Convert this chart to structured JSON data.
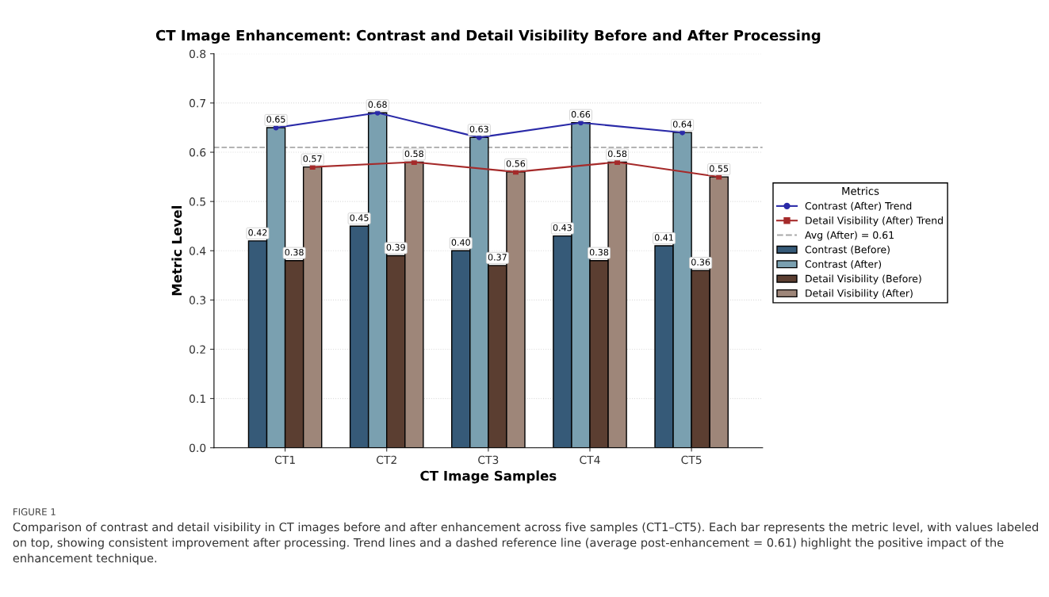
{
  "chart_data": {
    "type": "bar",
    "title": "CT Image Enhancement: Contrast and Detail Visibility Before and After Processing",
    "xlabel": "CT Image Samples",
    "ylabel": "Metric Level",
    "legend_title": "Metrics",
    "categories": [
      "CT1",
      "CT2",
      "CT3",
      "CT4",
      "CT5"
    ],
    "series": [
      {
        "name": "Contrast (Before)",
        "color": "#365a78",
        "values": [
          0.42,
          0.45,
          0.4,
          0.43,
          0.41
        ],
        "value_labels": [
          "0.42",
          "0.45",
          "0.40",
          "0.43",
          "0.41"
        ]
      },
      {
        "name": "Contrast (After)",
        "color": "#7aa0b0",
        "values": [
          0.65,
          0.68,
          0.63,
          0.66,
          0.64
        ],
        "value_labels": [
          "0.65",
          "0.68",
          "0.63",
          "0.66",
          "0.64"
        ]
      },
      {
        "name": "Detail Visibility (Before)",
        "color": "#5b3e31",
        "values": [
          0.38,
          0.39,
          0.37,
          0.38,
          0.36
        ],
        "value_labels": [
          "0.38",
          "0.39",
          "0.37",
          "0.38",
          "0.36"
        ]
      },
      {
        "name": "Detail Visibility (After)",
        "color": "#9e8679",
        "values": [
          0.57,
          0.58,
          0.56,
          0.58,
          0.55
        ],
        "value_labels": [
          "0.57",
          "0.58",
          "0.56",
          "0.58",
          "0.55"
        ]
      },
      {
        "name": "Contrast (After) Trend",
        "type": "line",
        "color": "#2a2aa8",
        "marker": "circle",
        "values": [
          0.65,
          0.68,
          0.63,
          0.66,
          0.64
        ]
      },
      {
        "name": "Detail Visibility (After) Trend",
        "type": "line",
        "color": "#a52a2a",
        "marker": "square",
        "values": [
          0.57,
          0.58,
          0.56,
          0.58,
          0.55
        ]
      }
    ],
    "ylim": [
      0,
      0.8
    ],
    "yticks": [
      {
        "value": 0,
        "label": "0.0"
      },
      0.1,
      0.2,
      0.3,
      0.4,
      0.5,
      0.6,
      0.7,
      0.8
    ],
    "ref_lines": [
      {
        "axis": "y",
        "value": 0.61,
        "label": "Avg (After) = 0.61",
        "color": "#a8a8a8",
        "line_style": "dashed"
      }
    ],
    "grid": "y",
    "legend": "right",
    "annotations": [
      "FIGURE 1",
      "Comparison of contrast and detail visibility in CT images before and after enhancement across five samples (CT1–CT5). Each bar represents the metric level, with values labeled on top, showing consistent improvement after processing. Trend lines and a dashed reference line (average post-enhancement = 0.61) highlight the positive impact of the enhancement technique."
    ]
  }
}
